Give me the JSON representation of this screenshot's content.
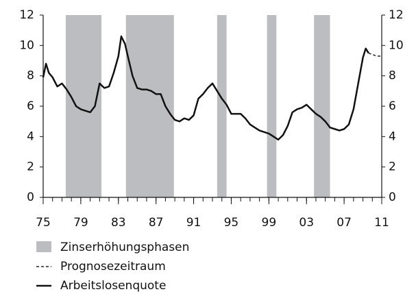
{
  "chart_data": {
    "type": "line",
    "xlim": [
      1975,
      2011
    ],
    "xticks": [
      {
        "value": 1975,
        "label": "75"
      },
      {
        "value": 1979,
        "label": "79"
      },
      {
        "value": 1983,
        "label": "83"
      },
      {
        "value": 1987,
        "label": "87"
      },
      {
        "value": 1991,
        "label": "91"
      },
      {
        "value": 1995,
        "label": "95"
      },
      {
        "value": 1999,
        "label": "99"
      },
      {
        "value": 2003,
        "label": "03"
      },
      {
        "value": 2007,
        "label": "07"
      },
      {
        "value": 2011,
        "label": "11"
      }
    ],
    "ylim": [
      0,
      12
    ],
    "yticks": [
      0,
      2,
      4,
      6,
      8,
      10,
      12
    ],
    "bands": {
      "name": "Zinserhöhungsphasen",
      "color": "#bcbdc0",
      "periods": [
        [
          1977.4,
          1981.2
        ],
        [
          1983.8,
          1988.9
        ],
        [
          1993.5,
          1994.5
        ],
        [
          1998.8,
          1999.8
        ],
        [
          2003.8,
          2005.5
        ]
      ]
    },
    "series": [
      {
        "name": "Prognosezeitraum",
        "color": "#222222",
        "dashed": true,
        "x": [
          2009.6,
          2010.0,
          2010.5,
          2011.0
        ],
        "values": [
          9.5,
          9.4,
          9.3,
          9.3
        ]
      },
      {
        "name": "Arbeitslosenquote",
        "color": "#111111",
        "dashed": false,
        "x": [
          1975.0,
          1975.3,
          1975.6,
          1976.0,
          1976.5,
          1977.0,
          1977.5,
          1978.0,
          1978.5,
          1979.0,
          1979.5,
          1980.0,
          1980.5,
          1981.0,
          1981.5,
          1982.0,
          1982.5,
          1983.0,
          1983.3,
          1983.7,
          1984.0,
          1984.5,
          1985.0,
          1985.5,
          1986.0,
          1986.5,
          1987.0,
          1987.5,
          1988.0,
          1988.5,
          1989.0,
          1989.5,
          1990.0,
          1990.5,
          1991.0,
          1991.5,
          1992.0,
          1992.5,
          1993.0,
          1993.5,
          1994.0,
          1994.5,
          1995.0,
          1995.5,
          1996.0,
          1996.5,
          1997.0,
          1997.5,
          1998.0,
          1998.5,
          1999.0,
          1999.5,
          2000.0,
          2000.5,
          2001.0,
          2001.5,
          2002.0,
          2002.5,
          2003.0,
          2003.5,
          2004.0,
          2004.5,
          2005.0,
          2005.5,
          2006.0,
          2006.5,
          2007.0,
          2007.5,
          2008.0,
          2008.5,
          2009.0,
          2009.3,
          2009.6
        ],
        "values": [
          7.9,
          8.8,
          8.2,
          7.9,
          7.3,
          7.5,
          7.1,
          6.6,
          6.0,
          5.8,
          5.7,
          5.6,
          6.0,
          7.5,
          7.2,
          7.3,
          8.2,
          9.3,
          10.6,
          10.1,
          9.3,
          8.0,
          7.2,
          7.1,
          7.1,
          7.0,
          6.8,
          6.8,
          6.0,
          5.5,
          5.1,
          5.0,
          5.2,
          5.1,
          5.4,
          6.5,
          6.8,
          7.2,
          7.5,
          7.0,
          6.5,
          6.1,
          5.5,
          5.5,
          5.5,
          5.2,
          4.8,
          4.6,
          4.4,
          4.3,
          4.2,
          4.0,
          3.8,
          4.1,
          4.7,
          5.6,
          5.8,
          5.9,
          6.1,
          5.8,
          5.5,
          5.3,
          5.0,
          4.6,
          4.5,
          4.4,
          4.5,
          4.8,
          5.8,
          7.5,
          9.2,
          9.8,
          9.5
        ]
      }
    ]
  }
}
